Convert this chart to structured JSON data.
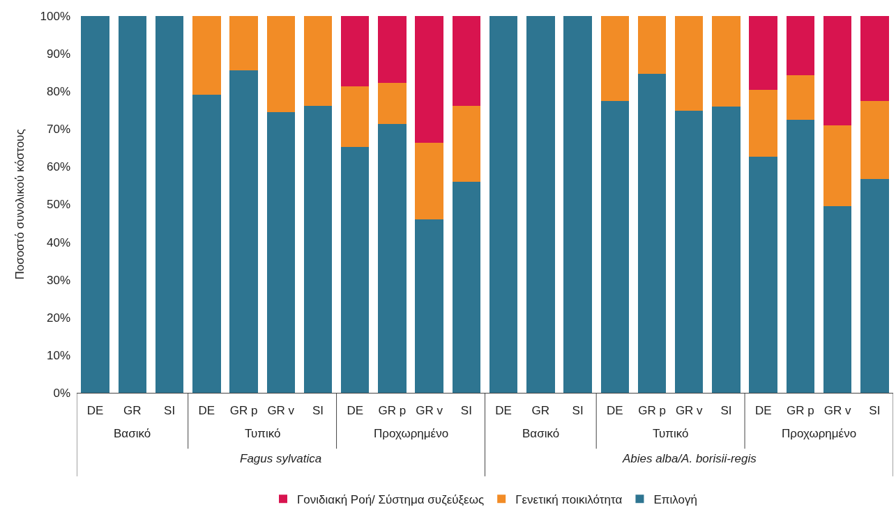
{
  "chart_data": {
    "type": "bar",
    "stacked": true,
    "ylabel": "Ποσοστό συνολικού κόστους",
    "categories": [
      "DE",
      "GR",
      "SI",
      "DE",
      "GR p",
      "GR v",
      "SI",
      "DE",
      "GR p",
      "GR v",
      "SI",
      "DE",
      "GR",
      "SI",
      "DE",
      "GR p",
      "GR v",
      "SI",
      "DE",
      "GR p",
      "GR v",
      "SI"
    ],
    "series": [
      {
        "name": "Επιλογή",
        "color": "#2e7591",
        "values": [
          100,
          100,
          100,
          79.1,
          85.5,
          74.5,
          76.2,
          65.2,
          71.4,
          46.0,
          56.0,
          100,
          100,
          100,
          77.5,
          84.6,
          74.9,
          76.0,
          62.6,
          72.5,
          49.6,
          56.8
        ]
      },
      {
        "name": "Γενετική ποικιλότητα",
        "color": "#f28c26",
        "values": [
          0,
          0,
          0,
          20.9,
          14.5,
          25.5,
          23.8,
          16.1,
          10.8,
          20.3,
          20.2,
          0,
          0,
          0,
          22.5,
          15.4,
          25.1,
          24.0,
          17.8,
          11.7,
          21.3,
          20.7
        ]
      },
      {
        "name": "Γονιδιακή Ροή/ Σύστημα συζεύξεως",
        "color": "#d8144f",
        "values": [
          0,
          0,
          0,
          0,
          0,
          0,
          0,
          18.7,
          17.8,
          33.7,
          23.8,
          0,
          0,
          0,
          0,
          0,
          0,
          0,
          19.6,
          15.8,
          29.1,
          22.5
        ]
      }
    ],
    "ylim": [
      0,
      100
    ],
    "yticks": [
      {
        "value": 0,
        "label": "0%"
      },
      {
        "value": 10,
        "label": "10%"
      },
      {
        "value": 20,
        "label": "20%"
      },
      {
        "value": 30,
        "label": "30%"
      },
      {
        "value": 40,
        "label": "40%"
      },
      {
        "value": 50,
        "label": "50%"
      },
      {
        "value": 60,
        "label": "60%"
      },
      {
        "value": 70,
        "label": "70%"
      },
      {
        "value": 80,
        "label": "80%"
      },
      {
        "value": 90,
        "label": "90%"
      },
      {
        "value": 100,
        "label": "100%"
      }
    ],
    "annotations": [
      "Βασικό",
      "Τυπικό",
      "Προχωρημένο",
      "Βασικό",
      "Τυπικό",
      "Προχωρημένο",
      "Fagus sylvatica",
      "Abies alba/A. borisii-regis"
    ],
    "grid": false,
    "legend": "bottom"
  }
}
